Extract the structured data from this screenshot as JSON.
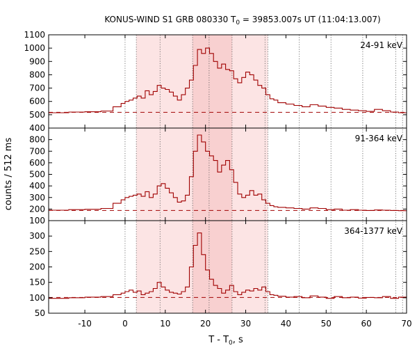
{
  "chart_data": {
    "type": "line",
    "title_main": "KONUS-WIND S1 GRB 080330 T",
    "title_sub": "0",
    "title_rest": " = 39853.007s UT (11:04:13.007)",
    "xlabel_main": "T - T",
    "xlabel_sub": "0",
    "xlabel_rest": ", s",
    "ylabel": "counts / 512 ms",
    "xlim": [
      -19,
      70
    ],
    "x_ticks": [
      -10,
      0,
      10,
      20,
      30,
      40,
      50,
      60,
      70
    ],
    "x_tick_labels": [
      "-10",
      "0",
      "10",
      "20",
      "30",
      "40",
      "50",
      "60",
      "70"
    ],
    "shaded_intervals": [
      {
        "x0": 2.8,
        "x1": 35.5,
        "color": "#fce4e4"
      },
      {
        "x0": 16.8,
        "x1": 26.6,
        "color": "#f8d0d0"
      }
    ],
    "vertical_dotted_lines": [
      0,
      2.8,
      8.7,
      16.8,
      20.9,
      26.6,
      34.8,
      35.5,
      43.3,
      51.2,
      59.1,
      67.3,
      69.0
    ],
    "series_color": "#a00000",
    "panels": [
      {
        "name": "24-91 keV",
        "ylim": [
          400,
          1100
        ],
        "y_ticks": [
          400,
          500,
          600,
          700,
          800,
          900,
          1000,
          1100
        ],
        "y_tick_labels": [
          "400",
          "500",
          "600",
          "700",
          "800",
          "900",
          "1000",
          "1100"
        ],
        "background": 518,
        "x": [
          -19,
          -14,
          -10,
          -6,
          -3,
          -1,
          0,
          1,
          2,
          3,
          4,
          5,
          6,
          7,
          8,
          9,
          10,
          11,
          12,
          13,
          14,
          15,
          16,
          17,
          18,
          19,
          20,
          21,
          22,
          23,
          24,
          25,
          26,
          27,
          28,
          29,
          30,
          31,
          32,
          33,
          34,
          35,
          36,
          37,
          38,
          40,
          42,
          44,
          46,
          48,
          50,
          52,
          54,
          56,
          58,
          60,
          62,
          64,
          66,
          68,
          70
        ],
        "values": [
          515,
          520,
          522,
          528,
          560,
          585,
          600,
          610,
          625,
          640,
          625,
          680,
          650,
          675,
          720,
          700,
          690,
          670,
          640,
          610,
          650,
          700,
          760,
          870,
          990,
          960,
          1000,
          960,
          900,
          850,
          880,
          840,
          830,
          770,
          740,
          780,
          820,
          800,
          760,
          720,
          700,
          650,
          620,
          610,
          590,
          580,
          570,
          560,
          575,
          565,
          555,
          550,
          540,
          535,
          530,
          525,
          540,
          530,
          520,
          515,
          510
        ]
      },
      {
        "name": "91-364 keV",
        "ylim": [
          100,
          900
        ],
        "y_ticks": [
          100,
          200,
          300,
          400,
          500,
          600,
          700,
          800
        ],
        "y_tick_labels": [
          "100",
          "200",
          "300",
          "400",
          "500",
          "600",
          "700",
          "800"
        ],
        "background": 188,
        "x": [
          -19,
          -14,
          -10,
          -6,
          -3,
          -1,
          0,
          1,
          2,
          3,
          4,
          5,
          6,
          7,
          8,
          9,
          10,
          11,
          12,
          13,
          14,
          15,
          16,
          17,
          18,
          19,
          20,
          21,
          22,
          23,
          24,
          25,
          26,
          27,
          28,
          29,
          30,
          31,
          32,
          33,
          34,
          35,
          36,
          37,
          38,
          40,
          42,
          44,
          46,
          48,
          50,
          52,
          54,
          56,
          58,
          60,
          62,
          64,
          66,
          68,
          70
        ],
        "values": [
          190,
          195,
          198,
          205,
          250,
          280,
          300,
          310,
          320,
          330,
          310,
          350,
          300,
          330,
          400,
          420,
          380,
          340,
          300,
          260,
          270,
          320,
          480,
          700,
          840,
          780,
          700,
          660,
          620,
          520,
          580,
          620,
          540,
          430,
          330,
          300,
          320,
          360,
          320,
          330,
          280,
          250,
          230,
          220,
          215,
          210,
          205,
          200,
          210,
          205,
          195,
          200,
          190,
          195,
          190,
          188,
          192,
          190,
          188,
          186,
          185
        ]
      },
      {
        "name": "364-1377 keV",
        "ylim": [
          50,
          350
        ],
        "y_ticks": [
          50,
          100,
          150,
          200,
          250,
          300
        ],
        "y_tick_labels": [
          "50",
          "100",
          "150",
          "200",
          "250",
          "300"
        ],
        "background": 101,
        "x": [
          -19,
          -14,
          -10,
          -6,
          -3,
          -1,
          0,
          1,
          2,
          3,
          4,
          5,
          6,
          7,
          8,
          9,
          10,
          11,
          12,
          13,
          14,
          15,
          16,
          17,
          18,
          19,
          20,
          21,
          22,
          23,
          24,
          25,
          26,
          27,
          28,
          29,
          30,
          31,
          32,
          33,
          34,
          35,
          36,
          37,
          38,
          40,
          42,
          44,
          46,
          48,
          50,
          52,
          54,
          56,
          58,
          60,
          62,
          64,
          66,
          68,
          70
        ],
        "values": [
          98,
          100,
          102,
          104,
          110,
          115,
          120,
          125,
          118,
          122,
          110,
          115,
          120,
          130,
          150,
          135,
          125,
          118,
          115,
          112,
          120,
          135,
          200,
          270,
          310,
          240,
          190,
          160,
          140,
          130,
          115,
          125,
          140,
          120,
          110,
          118,
          125,
          122,
          130,
          125,
          135,
          120,
          110,
          108,
          105,
          102,
          104,
          100,
          106,
          102,
          98,
          104,
          100,
          102,
          99,
          101,
          100,
          104,
          98,
          102,
          100
        ]
      }
    ]
  }
}
